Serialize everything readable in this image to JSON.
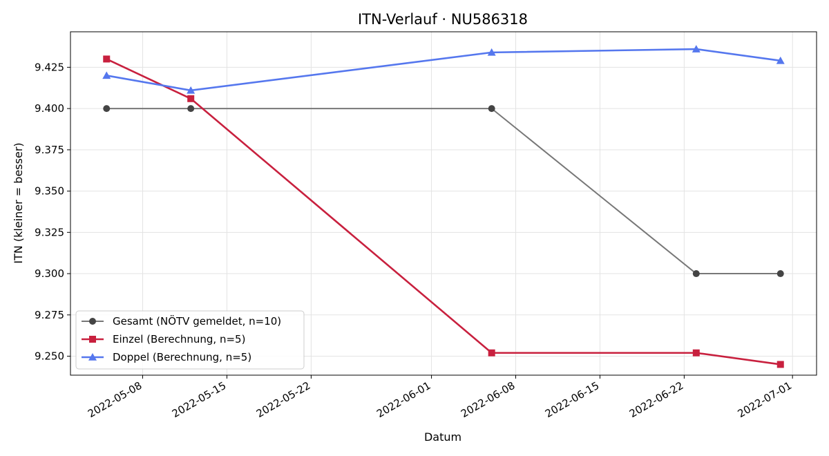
{
  "chart_data": {
    "type": "line",
    "title": "ITN-Verlauf · NU586318",
    "xlabel": "Datum",
    "ylabel": "ITN  (kleiner = besser)",
    "x_ticks": [
      "2022-05-08",
      "2022-05-15",
      "2022-05-22",
      "2022-06-01",
      "2022-06-08",
      "2022-06-15",
      "2022-06-22",
      "2022-07-01"
    ],
    "y_ticks": [
      "9.250",
      "9.275",
      "9.300",
      "9.325",
      "9.350",
      "9.375",
      "9.400",
      "9.425"
    ],
    "xlim": [
      "2022-05-02",
      "2022-07-03"
    ],
    "ylim": [
      9.2385,
      9.4465
    ],
    "grid": true,
    "legend_position": "lower-left",
    "series": [
      {
        "name": "Gesamt (NÖTV gemeldet, n=10)",
        "color": "#444444",
        "line_color": "#777777",
        "marker": "circle",
        "x": [
          "2022-05-05",
          "2022-05-12",
          "2022-06-06",
          "2022-06-23",
          "2022-06-30"
        ],
        "y": [
          9.4,
          9.4,
          9.4,
          9.3,
          9.3
        ]
      },
      {
        "name": "Einzel (Berechnung, n=5)",
        "color": "#c8203e",
        "line_color": "#c8203e",
        "marker": "square",
        "x": [
          "2022-05-05",
          "2022-05-12",
          "2022-06-06",
          "2022-06-23",
          "2022-06-30"
        ],
        "y": [
          9.43,
          9.406,
          9.252,
          9.252,
          9.245
        ]
      },
      {
        "name": "Doppel (Berechnung, n=5)",
        "color": "#5577ee",
        "line_color": "#5577ee",
        "marker": "triangle",
        "x": [
          "2022-05-05",
          "2022-05-12",
          "2022-06-06",
          "2022-06-23",
          "2022-06-30"
        ],
        "y": [
          9.42,
          9.411,
          9.434,
          9.436,
          9.429
        ]
      }
    ]
  }
}
